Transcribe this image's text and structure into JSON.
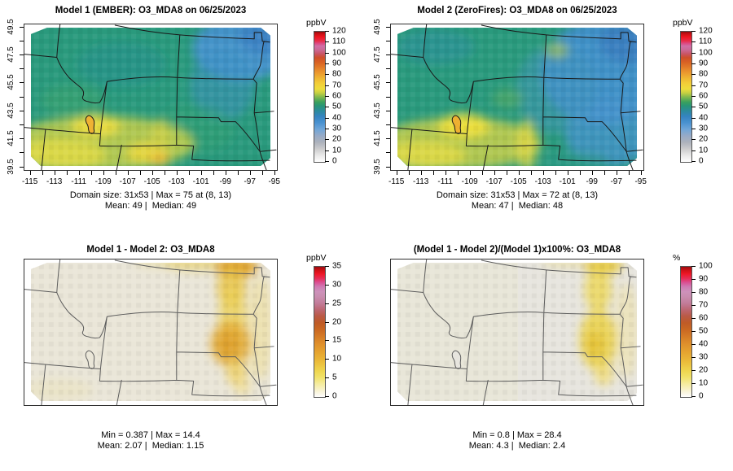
{
  "figure": {
    "background": "#ffffff"
  },
  "panels": [
    {
      "id": "model1",
      "title": "Model 1 (EMBER): O3_MDA8 on 06/25/2023",
      "caption": [
        "Domain size: 31x53 | Max = 75 at (8, 13)",
        "Mean: 49 |  Median: 49"
      ],
      "colorbar": {
        "title": "ppbV",
        "min": 0,
        "max": 120,
        "step": 10,
        "gradient": "conc"
      },
      "axes": {
        "show": true,
        "x_min": -115,
        "x_max": -95,
        "x_label_step": 2,
        "y_min": 39.5,
        "y_max": 49.5,
        "y_label_step": 2
      }
    },
    {
      "id": "model2",
      "title": "Model 2 (ZeroFires): O3_MDA8 on 06/25/2023",
      "caption": [
        "Domain size: 31x53 | Max = 72 at (8, 13)",
        "Mean: 47 |  Median: 48"
      ],
      "colorbar": {
        "title": "ppbV",
        "min": 0,
        "max": 120,
        "step": 10,
        "gradient": "conc"
      },
      "axes": {
        "show": true,
        "x_min": -115,
        "x_max": -95,
        "x_label_step": 2,
        "y_min": 39.5,
        "y_max": 49.5,
        "y_label_step": 2
      }
    },
    {
      "id": "difference",
      "title": "Model 1 - Model 2: O3_MDA8",
      "caption": [
        "Min = 0.387 | Max = 14.4",
        "Mean: 2.07 |  Median: 1.15"
      ],
      "colorbar": {
        "title": "ppbV",
        "min": 0,
        "max": 35,
        "step": 5,
        "gradient": "diff"
      },
      "axes": {
        "show": false
      }
    },
    {
      "id": "percent_difference",
      "title": "(Model 1 - Model 2)/(Model 1)x100%: O3_MDA8",
      "caption": [
        "Min = 0.8 | Max = 28.4",
        "Mean: 4.3 |  Median: 2.4"
      ],
      "colorbar": {
        "title": "%",
        "min": 0,
        "max": 100,
        "step": 10,
        "gradient": "diff"
      },
      "axes": {
        "show": false
      }
    }
  ],
  "gradients": {
    "conc": [
      {
        "p": 0,
        "c": "#ffffff"
      },
      {
        "p": 0.05,
        "c": "#e9e9e9"
      },
      {
        "p": 0.1,
        "c": "#cccccd"
      },
      {
        "p": 0.15,
        "c": "#adb2bc"
      },
      {
        "p": 0.2,
        "c": "#97aac7"
      },
      {
        "p": 0.25,
        "c": "#70a6d8"
      },
      {
        "p": 0.3,
        "c": "#4a92d0"
      },
      {
        "p": 0.35,
        "c": "#3583c0"
      },
      {
        "p": 0.39,
        "c": "#2c8b9e"
      },
      {
        "p": 0.43,
        "c": "#289577"
      },
      {
        "p": 0.46,
        "c": "#3ba05c"
      },
      {
        "p": 0.5,
        "c": "#85bb4d"
      },
      {
        "p": 0.53,
        "c": "#c6d042"
      },
      {
        "p": 0.56,
        "c": "#eedd3c"
      },
      {
        "p": 0.6,
        "c": "#f2cf38"
      },
      {
        "p": 0.64,
        "c": "#efb833"
      },
      {
        "p": 0.68,
        "c": "#ec9c2f"
      },
      {
        "p": 0.72,
        "c": "#e4802a"
      },
      {
        "p": 0.76,
        "c": "#da6524"
      },
      {
        "p": 0.8,
        "c": "#cf4f28"
      },
      {
        "p": 0.83,
        "c": "#c95565"
      },
      {
        "p": 0.86,
        "c": "#cc6994"
      },
      {
        "p": 0.89,
        "c": "#d06fa7"
      },
      {
        "p": 0.91,
        "c": "#dc4a82"
      },
      {
        "p": 0.93,
        "c": "#e82c48"
      },
      {
        "p": 0.96,
        "c": "#ee1620"
      },
      {
        "p": 0.985,
        "c": "#c60f14"
      },
      {
        "p": 1,
        "c": "#8c0b0e"
      }
    ],
    "diff": [
      {
        "p": 0,
        "c": "#fefefe"
      },
      {
        "p": 0.04,
        "c": "#f9f4da"
      },
      {
        "p": 0.1,
        "c": "#f5ec9f"
      },
      {
        "p": 0.15,
        "c": "#f1e26a"
      },
      {
        "p": 0.2,
        "c": "#efd64f"
      },
      {
        "p": 0.27,
        "c": "#ebbc3a"
      },
      {
        "p": 0.34,
        "c": "#e6a530"
      },
      {
        "p": 0.4,
        "c": "#e0922c"
      },
      {
        "p": 0.46,
        "c": "#d67d27"
      },
      {
        "p": 0.52,
        "c": "#c96722"
      },
      {
        "p": 0.57,
        "c": "#bf5b27"
      },
      {
        "p": 0.62,
        "c": "#ba5a45"
      },
      {
        "p": 0.67,
        "c": "#bd6672"
      },
      {
        "p": 0.72,
        "c": "#c27c99"
      },
      {
        "p": 0.77,
        "c": "#c98daf"
      },
      {
        "p": 0.81,
        "c": "#cd92bb"
      },
      {
        "p": 0.85,
        "c": "#d077b1"
      },
      {
        "p": 0.88,
        "c": "#da4f92"
      },
      {
        "p": 0.91,
        "c": "#e62e57"
      },
      {
        "p": 0.945,
        "c": "#ee1726"
      },
      {
        "p": 0.975,
        "c": "#cd1015"
      },
      {
        "p": 1,
        "c": "#9a0d10"
      }
    ]
  },
  "map_colors": {
    "model_base_green": "#2a9a7d",
    "blue_low_o3": "#4190cc",
    "yellow_high_o3": "#eede40",
    "diff_background": "#eae6d8",
    "pct_background": "#e7e5de",
    "plume_orange": "#e3ad37",
    "lake_fill_models": "#efb233",
    "state_border_dark": "#191919",
    "state_border_gray": "#5c5c5c"
  },
  "chart_data": [
    {
      "type": "heatmap",
      "panel": "top-left",
      "title": "Model 1 (EMBER): O3_MDA8 on 06/25/2023",
      "model": "Model 1 (EMBER)",
      "variable": "O3_MDA8",
      "date": "06/25/2023",
      "units": "ppbV",
      "x_tick_labels": [
        -115,
        -113,
        -111,
        -109,
        -107,
        -105,
        -103,
        -101,
        -99,
        -97,
        -95
      ],
      "y_tick_labels": [
        39.5,
        41.5,
        43.5,
        45.5,
        47.5,
        49.5
      ],
      "colorbar": {
        "label": "ppbV",
        "range": [
          0,
          120
        ],
        "ticks": [
          0,
          10,
          20,
          30,
          40,
          50,
          60,
          70,
          80,
          90,
          100,
          110,
          120
        ]
      },
      "stats": {
        "domain_size": "31x53",
        "max": 75,
        "max_location": "(8, 13)",
        "mean": 49,
        "median": 49
      },
      "field_pattern": "~45-55 ppbV teal-green over most of the domain; 30-40 ppbV blue over eastern North Dakota / eastern edge; 55-70 ppbV yellow over southern Idaho, Utah and southern Wyoming; peak ~75 near Great Salt Lake"
    },
    {
      "type": "heatmap",
      "panel": "top-right",
      "title": "Model 2 (ZeroFires): O3_MDA8 on 06/25/2023",
      "model": "Model 2 (ZeroFires)",
      "variable": "O3_MDA8",
      "date": "06/25/2023",
      "units": "ppbV",
      "x_tick_labels": [
        -115,
        -113,
        -111,
        -109,
        -107,
        -105,
        -103,
        -101,
        -99,
        -97,
        -95
      ],
      "y_tick_labels": [
        39.5,
        41.5,
        43.5,
        45.5,
        47.5,
        49.5
      ],
      "colorbar": {
        "label": "ppbV",
        "range": [
          0,
          120
        ],
        "ticks": [
          0,
          10,
          20,
          30,
          40,
          50,
          60,
          70,
          80,
          90,
          100,
          110,
          120
        ]
      },
      "stats": {
        "domain_size": "31x53",
        "max": 72,
        "max_location": "(8, 13)",
        "mean": 47,
        "median": 48
      },
      "field_pattern": "similar to Model 1 but 5-10 ppbV lower (more blue) across the eastern half of the domain; yellows persist in the southwest around Utah / southern Idaho"
    },
    {
      "type": "heatmap",
      "panel": "bottom-left",
      "title": "Model 1 - Model 2: O3_MDA8",
      "variable": "O3_MDA8",
      "units": "ppbV",
      "colorbar": {
        "label": "ppbV",
        "range": [
          0,
          35
        ],
        "ticks": [
          0,
          5,
          10,
          15,
          20,
          25,
          30,
          35
        ]
      },
      "stats": {
        "min": 0.387,
        "max": 14.4,
        "mean": 2.07,
        "median": 1.15
      },
      "field_pattern": "near zero (cream) nearly everywhere; 5-14 ppbV orange plume along the eastern Dakotas into northeast Nebraska, strongest at the northern domain edge"
    },
    {
      "type": "heatmap",
      "panel": "bottom-right",
      "title": "(Model 1 - Model 2)/(Model 1)x100%: O3_MDA8",
      "variable": "O3_MDA8",
      "units": "%",
      "colorbar": {
        "label": "%",
        "range": [
          0,
          100
        ],
        "ticks": [
          0,
          10,
          20,
          30,
          40,
          50,
          60,
          70,
          80,
          90,
          100
        ]
      },
      "stats": {
        "min": 0.8,
        "max": 28.4,
        "mean": 4.3,
        "median": 2.4
      },
      "field_pattern": "mostly under 5% (light gray); 10-28% yellow plume along the eastern Dakotas matching the difference panel"
    }
  ]
}
